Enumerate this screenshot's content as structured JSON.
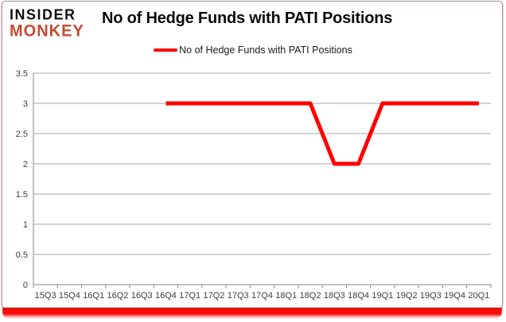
{
  "logo": {
    "line1": "INSIDER",
    "line2": "MONKEY",
    "color": "#C74B35"
  },
  "header": {
    "title": "No of Hedge Funds with PATI Positions"
  },
  "legend": {
    "label": "No of Hedge Funds with PATI Positions",
    "line_color": "#FE0000"
  },
  "chart_data": {
    "type": "line",
    "title": "No of Hedge Funds with PATI Positions",
    "categories": [
      "15Q3",
      "15Q4",
      "16Q1",
      "16Q2",
      "16Q3",
      "16Q4",
      "17Q1",
      "17Q2",
      "17Q3",
      "17Q4",
      "18Q1",
      "18Q2",
      "18Q3",
      "18Q4",
      "19Q1",
      "19Q2",
      "19Q3",
      "19Q4",
      "20Q1"
    ],
    "series": [
      {
        "name": "No of Hedge Funds with PATI Positions",
        "color": "#FE0000",
        "values": [
          null,
          null,
          null,
          null,
          null,
          3,
          3,
          3,
          3,
          3,
          3,
          3,
          2,
          2,
          3,
          3,
          3,
          3,
          3
        ]
      }
    ],
    "ylim": [
      0,
      3.5
    ],
    "ytick_step": 0.5,
    "ytick_labels": [
      "0",
      "0.5",
      "1",
      "1.5",
      "2",
      "2.5",
      "3",
      "3.5"
    ],
    "grid": true,
    "legend_position": "top",
    "grid_color": "#A6A6A6",
    "axis_color": "#898989"
  },
  "colors": {
    "accent_red": "#FE0000",
    "bottom_bar_red": "#F20C0C",
    "logo_red": "#C74B35",
    "background": "#FFFFFF"
  }
}
